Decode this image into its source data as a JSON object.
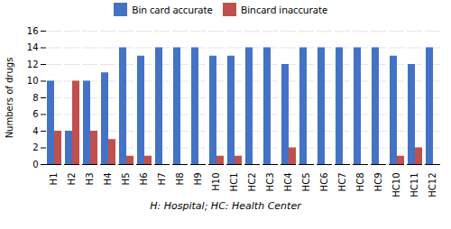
{
  "chart_data": {
    "type": "bar",
    "categories": [
      "H1",
      "H2",
      "H3",
      "H4",
      "H5",
      "H6",
      "H7",
      "H8",
      "H9",
      "H10",
      "HC1",
      "HC2",
      "HC3",
      "HC4",
      "HC5",
      "HC6",
      "HC7",
      "HC8",
      "HC9",
      "HC10",
      "HC11",
      "HC12"
    ],
    "series": [
      {
        "name": "Bin card accurate",
        "color": "#4472C4",
        "values": [
          10,
          4,
          10,
          11,
          14,
          13,
          14,
          14,
          14,
          13,
          13,
          14,
          14,
          12,
          14,
          14,
          14,
          14,
          14,
          13,
          12,
          14
        ]
      },
      {
        "name": "Bincard inaccurate",
        "color": "#C0504D",
        "values": [
          4,
          10,
          4,
          3,
          1,
          1,
          0,
          0,
          0,
          1,
          1,
          0,
          0,
          2,
          0,
          0,
          0,
          0,
          0,
          1,
          2,
          0
        ]
      }
    ],
    "ylabel": "Numbers of drugs",
    "xlabel": "H: Hospital; HC: Health Center",
    "ylim": [
      0,
      16
    ],
    "yticks": [
      0,
      2,
      4,
      6,
      8,
      10,
      12,
      14,
      16
    ],
    "grid": true,
    "legend": "top"
  }
}
